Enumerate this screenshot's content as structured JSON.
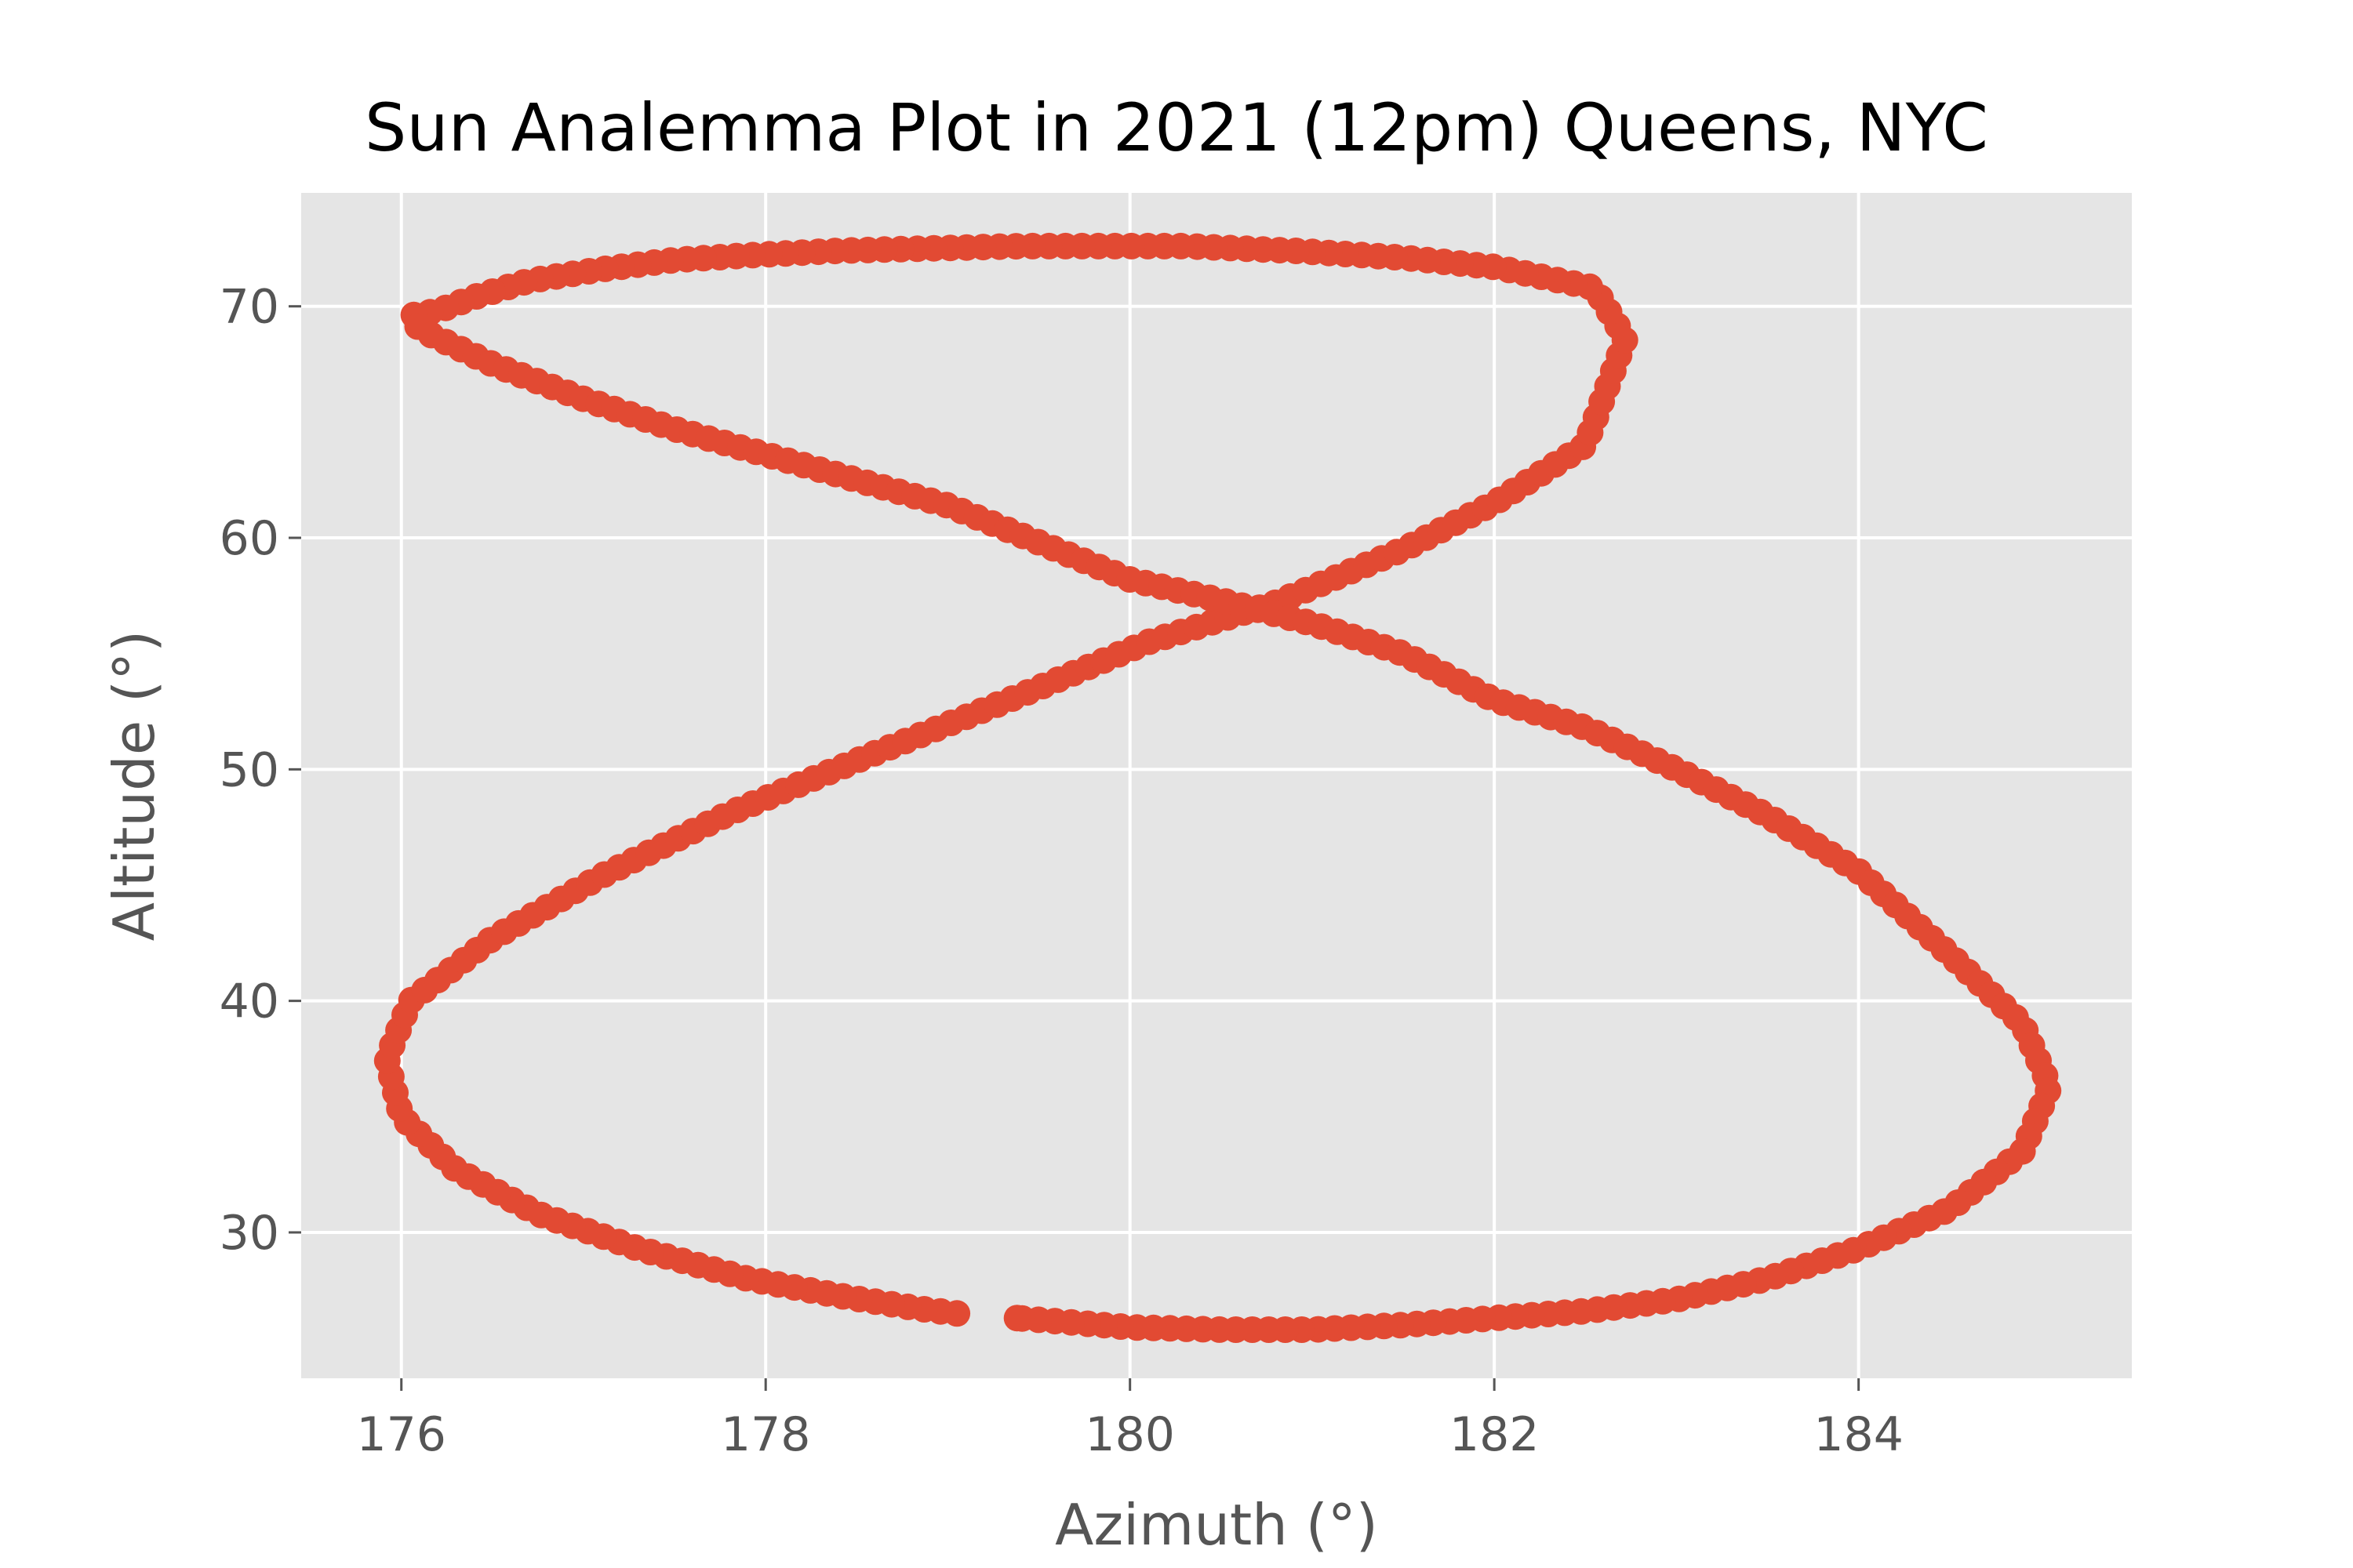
{
  "chart_data": {
    "type": "scatter",
    "title": "Sun Analemma Plot in 2021 (12pm) Queens, NYC",
    "xlabel": "Azimuth (°)",
    "ylabel": "Altitude (°)",
    "xlim": [
      175.45,
      185.5
    ],
    "ylim": [
      23.7,
      74.9
    ],
    "xticks": [
      176,
      178,
      180,
      182,
      184
    ],
    "yticks": [
      30,
      40,
      50,
      60,
      70
    ],
    "grid": true,
    "legend": "none",
    "marker_color": "#E24A33",
    "background_color": "#E5E5E5",
    "grid_color": "#FFFFFF",
    "series": [
      {
        "name": "",
        "x": [
          179.05,
          178.85,
          178.45,
          177.9,
          177.3,
          176.75,
          176.3,
          176.0,
          175.92,
          176.05,
          176.5,
          177.1,
          177.8,
          178.6,
          179.4,
          180.1,
          180.8,
          181.5,
          182.0,
          182.5,
          182.72,
          182.55,
          182.0,
          181.5,
          180.9,
          180.3,
          179.9,
          179.4,
          178.9,
          178.4,
          177.9,
          177.5,
          177.1,
          176.7,
          176.4,
          176.2,
          176.05,
          176.1,
          176.5,
          177.0,
          177.5,
          178.0,
          178.5,
          179.0,
          179.5,
          180.0,
          180.5,
          181.0,
          181.5,
          182.0,
          182.5,
          183.0,
          183.5,
          184.0,
          184.5,
          184.9,
          185.05,
          184.9,
          184.5,
          184.0,
          183.5,
          183.0,
          182.5,
          182.0,
          181.5,
          181.0,
          180.5,
          180.0,
          179.7,
          179.38
        ],
        "y": [
          26.5,
          26.7,
          27.2,
          28.0,
          29.3,
          30.8,
          32.7,
          35.0,
          37.5,
          40.0,
          42.7,
          45.4,
          48.1,
          50.7,
          53.2,
          55.5,
          57.2,
          59.5,
          61.5,
          64.0,
          68.6,
          70.8,
          71.7,
          72.1,
          72.4,
          72.6,
          72.6,
          72.6,
          72.5,
          72.4,
          72.2,
          72.0,
          71.6,
          71.1,
          70.4,
          69.8,
          69.6,
          69.0,
          67.5,
          66.0,
          64.7,
          63.6,
          62.5,
          61.4,
          59.8,
          58.2,
          57.3,
          56.3,
          55.0,
          53.0,
          51.8,
          50.0,
          48.0,
          45.6,
          42.0,
          39.0,
          36.3,
          33.5,
          31.0,
          29.3,
          28.0,
          27.1,
          26.6,
          26.3,
          26.0,
          25.8,
          25.8,
          25.9,
          26.1,
          26.3
        ]
      }
    ]
  }
}
